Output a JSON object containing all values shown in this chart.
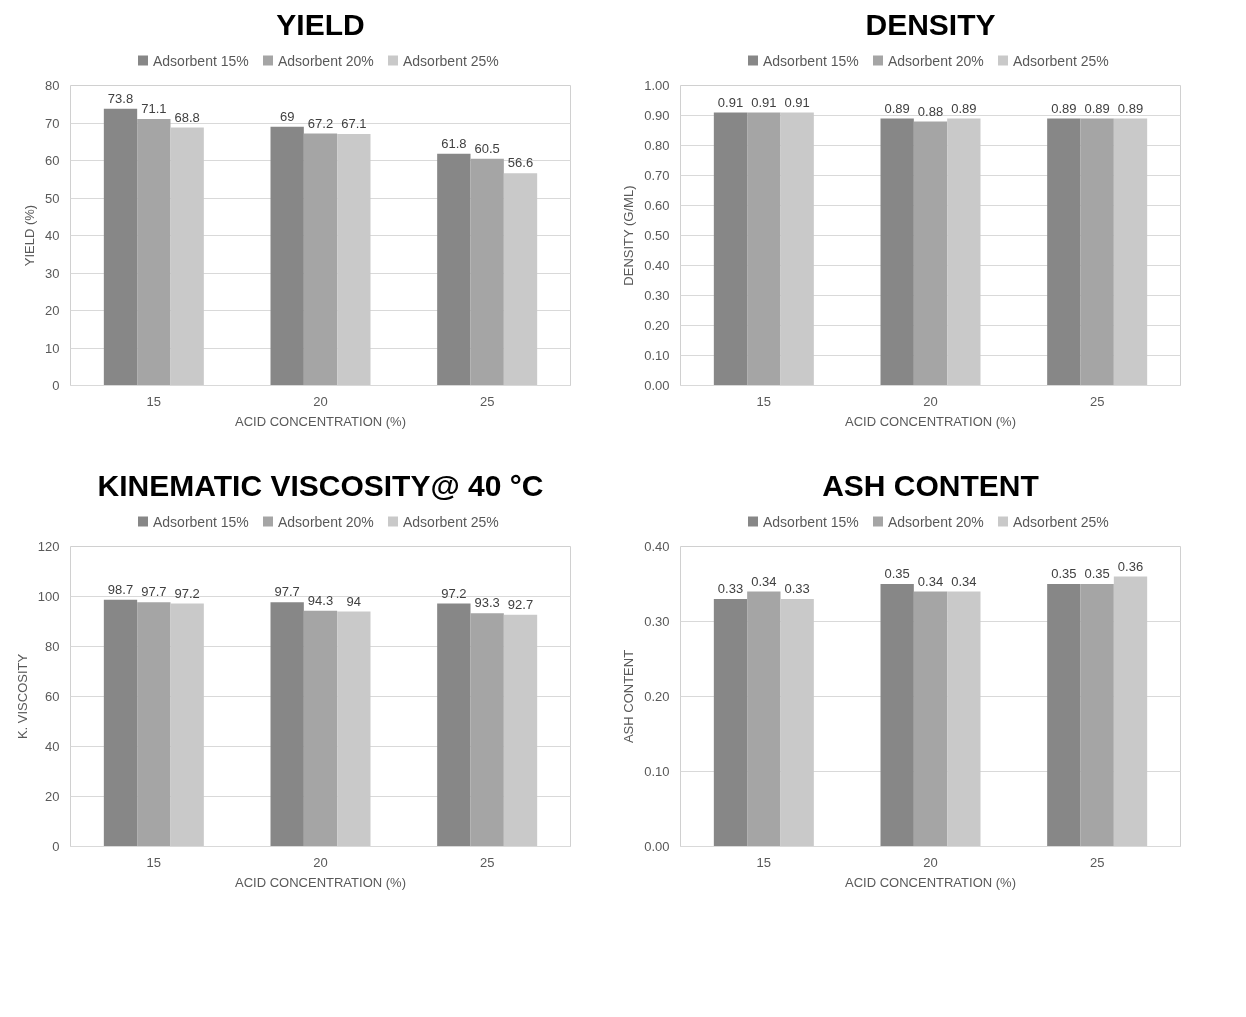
{
  "chart_data": [
    {
      "type": "bar",
      "title": "YIELD",
      "xlabel": "ACID CONCENTRATION (%)",
      "ylabel": "YIELD (%)",
      "categories": [
        "15",
        "20",
        "25"
      ],
      "series": [
        {
          "name": "Adsorbent 15%",
          "color": "#878787",
          "values": [
            73.8,
            69,
            61.8
          ]
        },
        {
          "name": "Adsorbent 20%",
          "color": "#a5a5a5",
          "values": [
            71.1,
            67.2,
            60.5
          ]
        },
        {
          "name": "Adsorbent 25%",
          "color": "#c9c9c9",
          "values": [
            68.8,
            67.1,
            56.6
          ]
        }
      ],
      "ylim": [
        0,
        80
      ],
      "yticks": [
        0,
        10,
        20,
        30,
        40,
        50,
        60,
        70,
        80
      ],
      "grid": "y",
      "legend": "top",
      "data_labels": true
    },
    {
      "type": "bar",
      "title": "DENSITY",
      "xlabel": "ACID CONCENTRATION (%)",
      "ylabel": "DENSITY (G/ML)",
      "categories": [
        "15",
        "20",
        "25"
      ],
      "series": [
        {
          "name": "Adsorbent 15%",
          "color": "#878787",
          "values": [
            0.91,
            0.89,
            0.89
          ]
        },
        {
          "name": "Adsorbent 20%",
          "color": "#a5a5a5",
          "values": [
            0.91,
            0.88,
            0.89
          ]
        },
        {
          "name": "Adsorbent 25%",
          "color": "#c9c9c9",
          "values": [
            0.91,
            0.89,
            0.89
          ]
        }
      ],
      "ylim": [
        0,
        1
      ],
      "yticks": [
        {
          "value": 0,
          "label": "0.00"
        },
        {
          "value": 0.1,
          "label": "0.10"
        },
        {
          "value": 0.2,
          "label": "0.20"
        },
        {
          "value": 0.3,
          "label": "0.30"
        },
        {
          "value": 0.4,
          "label": "0.40"
        },
        {
          "value": 0.5,
          "label": "0.50"
        },
        {
          "value": 0.6,
          "label": "0.60"
        },
        {
          "value": 0.7,
          "label": "0.70"
        },
        {
          "value": 0.8,
          "label": "0.80"
        },
        {
          "value": 0.9,
          "label": "0.90"
        },
        {
          "value": 1,
          "label": "1.00"
        }
      ],
      "grid": "y",
      "legend": "top",
      "data_labels": true
    },
    {
      "type": "bar",
      "title": "KINEMATIC VISCOSITY@ 40 °C",
      "xlabel": "ACID CONCENTRATION (%)",
      "ylabel": "K. VISCOSITY",
      "categories": [
        "15",
        "20",
        "25"
      ],
      "series": [
        {
          "name": "Adsorbent 15%",
          "color": "#878787",
          "values": [
            98.7,
            97.7,
            97.2
          ]
        },
        {
          "name": "Adsorbent 20%",
          "color": "#a5a5a5",
          "values": [
            97.7,
            94.3,
            93.3
          ]
        },
        {
          "name": "Adsorbent 25%",
          "color": "#c9c9c9",
          "values": [
            97.2,
            94,
            92.7
          ]
        }
      ],
      "ylim": [
        0,
        120
      ],
      "yticks": [
        0,
        20,
        40,
        60,
        80,
        100,
        120
      ],
      "grid": "y",
      "legend": "top",
      "data_labels": true
    },
    {
      "type": "bar",
      "title": "ASH CONTENT",
      "xlabel": "ACID CONCENTRATION (%)",
      "ylabel": "ASH CONTENT",
      "categories": [
        "15",
        "20",
        "25"
      ],
      "series": [
        {
          "name": "Adsorbent 15%",
          "color": "#878787",
          "values": [
            0.33,
            0.35,
            0.35
          ]
        },
        {
          "name": "Adsorbent 20%",
          "color": "#a5a5a5",
          "values": [
            0.34,
            0.34,
            0.35
          ]
        },
        {
          "name": "Adsorbent 25%",
          "color": "#c9c9c9",
          "values": [
            0.33,
            0.34,
            0.36
          ]
        }
      ],
      "ylim": [
        0,
        0.4
      ],
      "yticks": [
        {
          "value": 0,
          "label": "0.00"
        },
        {
          "value": 0.1,
          "label": "0.10"
        },
        {
          "value": 0.2,
          "label": "0.20"
        },
        {
          "value": 0.3,
          "label": "0.30"
        },
        {
          "value": 0.4,
          "label": "0.40"
        }
      ],
      "grid": "y",
      "legend": "top",
      "data_labels": true
    }
  ]
}
